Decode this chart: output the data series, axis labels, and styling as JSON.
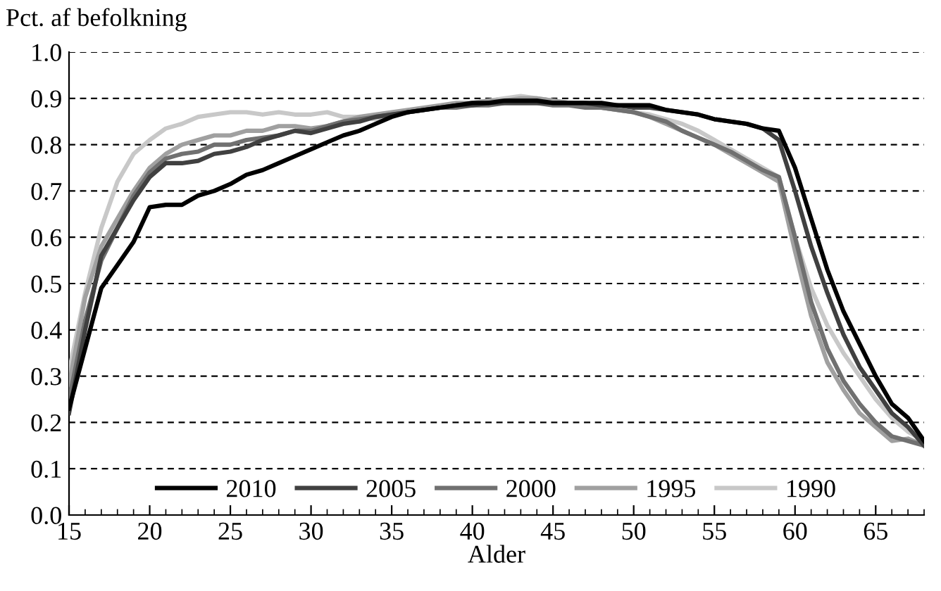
{
  "chart_data": {
    "type": "line",
    "ylabel": "Pct. af befolkning",
    "xlabel": "Alder",
    "x": [
      15,
      16,
      17,
      18,
      19,
      20,
      21,
      22,
      23,
      24,
      25,
      26,
      27,
      28,
      29,
      30,
      31,
      32,
      33,
      34,
      35,
      36,
      37,
      38,
      39,
      40,
      41,
      42,
      43,
      44,
      45,
      46,
      47,
      48,
      49,
      50,
      51,
      52,
      53,
      54,
      55,
      56,
      57,
      58,
      59,
      60,
      61,
      62,
      63,
      64,
      65,
      66,
      67,
      68
    ],
    "series": [
      {
        "name": "2010",
        "color": "#000000",
        "values": [
          0.23,
          0.36,
          0.49,
          0.54,
          0.59,
          0.665,
          0.67,
          0.67,
          0.69,
          0.7,
          0.715,
          0.735,
          0.745,
          0.76,
          0.775,
          0.79,
          0.805,
          0.82,
          0.83,
          0.845,
          0.86,
          0.87,
          0.875,
          0.88,
          0.885,
          0.89,
          0.89,
          0.895,
          0.895,
          0.895,
          0.89,
          0.89,
          0.89,
          0.89,
          0.885,
          0.885,
          0.885,
          0.875,
          0.87,
          0.865,
          0.855,
          0.85,
          0.845,
          0.835,
          0.83,
          0.75,
          0.64,
          0.53,
          0.44,
          0.37,
          0.3,
          0.24,
          0.21,
          0.16
        ]
      },
      {
        "name": "2005",
        "color": "#404040",
        "values": [
          0.22,
          0.4,
          0.56,
          0.62,
          0.68,
          0.73,
          0.76,
          0.76,
          0.765,
          0.78,
          0.785,
          0.795,
          0.81,
          0.82,
          0.83,
          0.825,
          0.835,
          0.845,
          0.85,
          0.86,
          0.865,
          0.87,
          0.875,
          0.88,
          0.885,
          0.885,
          0.89,
          0.89,
          0.89,
          0.89,
          0.89,
          0.89,
          0.89,
          0.885,
          0.885,
          0.88,
          0.88,
          0.875,
          0.87,
          0.865,
          0.855,
          0.85,
          0.845,
          0.835,
          0.81,
          0.7,
          0.58,
          0.48,
          0.39,
          0.32,
          0.27,
          0.22,
          0.19,
          0.15
        ]
      },
      {
        "name": "2000",
        "color": "#707070",
        "values": [
          0.25,
          0.42,
          0.55,
          0.62,
          0.69,
          0.74,
          0.77,
          0.78,
          0.785,
          0.8,
          0.8,
          0.81,
          0.815,
          0.82,
          0.83,
          0.83,
          0.84,
          0.85,
          0.855,
          0.86,
          0.865,
          0.87,
          0.875,
          0.88,
          0.88,
          0.885,
          0.885,
          0.89,
          0.89,
          0.89,
          0.885,
          0.885,
          0.88,
          0.88,
          0.875,
          0.87,
          0.86,
          0.85,
          0.83,
          0.815,
          0.8,
          0.785,
          0.765,
          0.745,
          0.73,
          0.6,
          0.46,
          0.36,
          0.29,
          0.24,
          0.2,
          0.17,
          0.16,
          0.15
        ]
      },
      {
        "name": "1995",
        "color": "#a0a0a0",
        "values": [
          0.28,
          0.47,
          0.58,
          0.64,
          0.7,
          0.75,
          0.78,
          0.8,
          0.81,
          0.82,
          0.82,
          0.83,
          0.83,
          0.84,
          0.84,
          0.835,
          0.84,
          0.85,
          0.86,
          0.865,
          0.87,
          0.875,
          0.88,
          0.885,
          0.89,
          0.89,
          0.895,
          0.895,
          0.9,
          0.9,
          0.895,
          0.89,
          0.885,
          0.88,
          0.875,
          0.87,
          0.86,
          0.845,
          0.83,
          0.815,
          0.8,
          0.78,
          0.76,
          0.74,
          0.72,
          0.57,
          0.43,
          0.33,
          0.27,
          0.22,
          0.19,
          0.16,
          0.165,
          0.15
        ]
      },
      {
        "name": "1990",
        "color": "#c8c8c8",
        "values": [
          0.31,
          0.48,
          0.62,
          0.72,
          0.78,
          0.81,
          0.835,
          0.845,
          0.86,
          0.865,
          0.87,
          0.87,
          0.865,
          0.87,
          0.865,
          0.865,
          0.87,
          0.86,
          0.86,
          0.855,
          0.865,
          0.87,
          0.875,
          0.88,
          0.885,
          0.89,
          0.895,
          0.9,
          0.905,
          0.9,
          0.895,
          0.89,
          0.885,
          0.88,
          0.875,
          0.87,
          0.865,
          0.855,
          0.845,
          0.83,
          0.81,
          0.79,
          0.77,
          0.75,
          0.73,
          0.6,
          0.49,
          0.41,
          0.35,
          0.3,
          0.25,
          0.21,
          0.18,
          0.16
        ]
      }
    ],
    "xlim": [
      15,
      68
    ],
    "xticks": [
      15,
      20,
      25,
      30,
      35,
      40,
      45,
      50,
      55,
      60,
      65
    ],
    "ylim": [
      0.0,
      1.0
    ],
    "yticks": [
      {
        "value": 0.0,
        "label": "0.0"
      },
      {
        "value": 0.1,
        "label": "0.1"
      },
      {
        "value": 0.2,
        "label": "0.2"
      },
      {
        "value": 0.3,
        "label": "0.3"
      },
      {
        "value": 0.4,
        "label": "0.4"
      },
      {
        "value": 0.5,
        "label": "0.5"
      },
      {
        "value": 0.6,
        "label": "0.6"
      },
      {
        "value": 0.7,
        "label": "0.7"
      },
      {
        "value": 0.8,
        "label": "0.8"
      },
      {
        "value": 0.9,
        "label": "0.9"
      },
      {
        "value": 1.0,
        "label": "1.0"
      }
    ],
    "grid": "y",
    "legend": "bottom",
    "line_style": "solid",
    "marker": "none"
  }
}
